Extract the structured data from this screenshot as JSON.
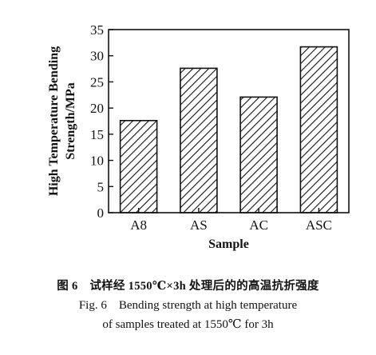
{
  "chart_data": {
    "type": "bar",
    "categories": [
      "A8",
      "AS",
      "AC",
      "ASC"
    ],
    "values": [
      17.6,
      27.6,
      22.1,
      31.7
    ],
    "ylim": [
      0,
      35
    ],
    "yticks": [
      0,
      5,
      10,
      15,
      20,
      25,
      30,
      35
    ],
    "xlabel": "Sample",
    "ylabel_line1": "High Temperature Bending",
    "ylabel_line2": "Strength/MPa",
    "grid": false,
    "bar_fill": "diagonal-hatch",
    "colors": {
      "ink": "#111111",
      "background": "#ffffff"
    }
  },
  "caption": {
    "cn": "图 6　试样经 1550℃×3h 处理后的的高温抗折强度",
    "en_line1": "Fig. 6　Bending strength at high temperature",
    "en_line2": "of samples treated at 1550℃ for 3h"
  }
}
